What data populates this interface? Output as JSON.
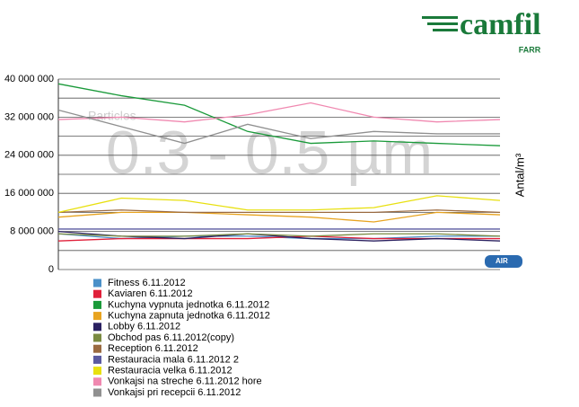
{
  "logo": {
    "name": "camfil",
    "sub": "FARR",
    "badge": "AIR"
  },
  "chart_data": {
    "type": "line",
    "annotations": [
      "Particles",
      "0.3 - 0.5 µm"
    ],
    "y_label": "Antal/m³",
    "categories": [
      null,
      null,
      null,
      null,
      null,
      null,
      null,
      null
    ],
    "ylim": [
      0,
      40000000
    ],
    "yticks": [
      {
        "value": 0,
        "label": "0"
      },
      {
        "value": 8000000,
        "label": "8 000 000"
      },
      {
        "value": 16000000,
        "label": "16 000 000"
      },
      {
        "value": 24000000,
        "label": "24 000 000"
      },
      {
        "value": 32000000,
        "label": "32 000 000"
      },
      {
        "value": 40000000,
        "label": "40 000 000"
      }
    ],
    "minor_yticks": [
      4000000,
      12000000,
      20000000,
      28000000,
      36000000
    ],
    "grid": true,
    "series": [
      {
        "name": "Fitness 6.11.2012",
        "color": "#4a90c8",
        "values": [
          7500000,
          6500000,
          7000000,
          7000000,
          6500000,
          6500000,
          7000000,
          7000000
        ]
      },
      {
        "name": "Kaviaren 6.11.2012",
        "color": "#e0203a",
        "values": [
          6000000,
          6500000,
          6500000,
          6500000,
          7000000,
          6500000,
          6500000,
          6500000
        ]
      },
      {
        "name": "Kuchyna vypnuta jednotka 6.11.2012",
        "color": "#1a9a3a",
        "values": [
          39000000,
          36500000,
          34500000,
          29000000,
          26500000,
          27000000,
          26500000,
          26000000
        ]
      },
      {
        "name": "Kuchyna zapnuta jednotka 6.11.2012",
        "color": "#e8a420",
        "values": [
          11000000,
          12000000,
          12000000,
          11500000,
          11000000,
          10000000,
          12000000,
          11500000
        ]
      },
      {
        "name": "Lobby 6.11.2012",
        "color": "#2a2060",
        "values": [
          8000000,
          7000000,
          6500000,
          7500000,
          6500000,
          6000000,
          6500000,
          6000000
        ]
      },
      {
        "name": "Obchod pas 6.11.2012(copy)",
        "color": "#7a8a40",
        "values": [
          7500000,
          7000000,
          7000000,
          7500000,
          7000000,
          7500000,
          7500000,
          7000000
        ]
      },
      {
        "name": "Reception 6.11.2012",
        "color": "#9a6a40",
        "values": [
          12000000,
          12500000,
          12000000,
          12000000,
          12000000,
          12000000,
          12500000,
          12000000
        ]
      },
      {
        "name": "Restauracia mala 6.11.2012 2",
        "color": "#5a5aa0",
        "values": [
          8500000,
          8500000,
          8500000,
          8500000,
          8500000,
          8500000,
          8500000,
          8500000
        ]
      },
      {
        "name": "Restauracia velka 6.11.2012",
        "color": "#e8e010",
        "values": [
          12000000,
          15000000,
          14500000,
          12500000,
          12500000,
          13000000,
          15500000,
          14500000
        ]
      },
      {
        "name": "Vonkajsi na streche 6.11.2012 hore",
        "color": "#f088b0",
        "values": [
          31500000,
          32000000,
          31000000,
          32500000,
          35000000,
          32000000,
          31000000,
          31500000
        ]
      },
      {
        "name": "Vonkajsi pri recepcii 6.11.2012",
        "color": "#909090",
        "values": [
          33500000,
          30000000,
          26500000,
          30500000,
          27500000,
          29000000,
          28500000,
          28500000
        ]
      }
    ]
  }
}
